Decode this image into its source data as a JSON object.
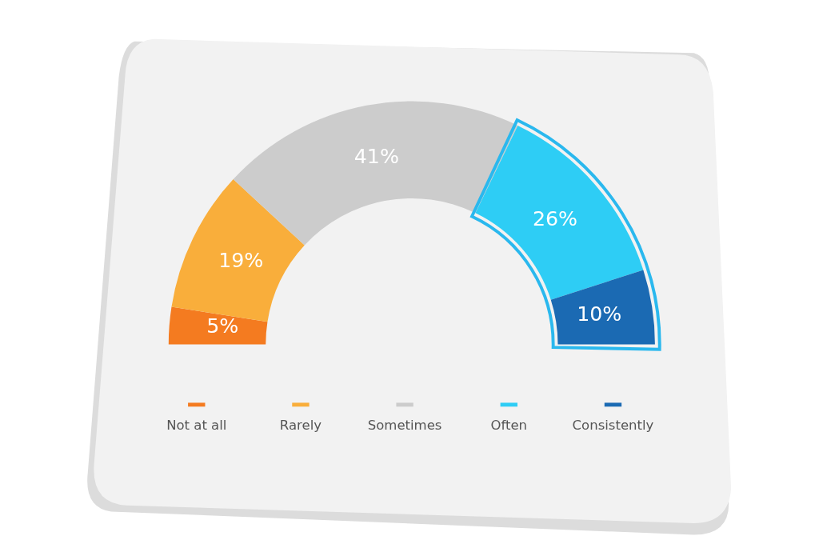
{
  "chart_data": {
    "type": "donut",
    "categories": [
      "Not at all",
      "Rarely",
      "Sometimes",
      "Often",
      "Consistently"
    ],
    "values": [
      5,
      19,
      41,
      26,
      10
    ],
    "colors": [
      "#f47b20",
      "#f9ae3b",
      "#cccccc",
      "#2ecdf5",
      "#1b6ab3"
    ],
    "value_labels": [
      "5%",
      "19%",
      "41%",
      "26%",
      "10%"
    ],
    "legend": "bottom"
  }
}
